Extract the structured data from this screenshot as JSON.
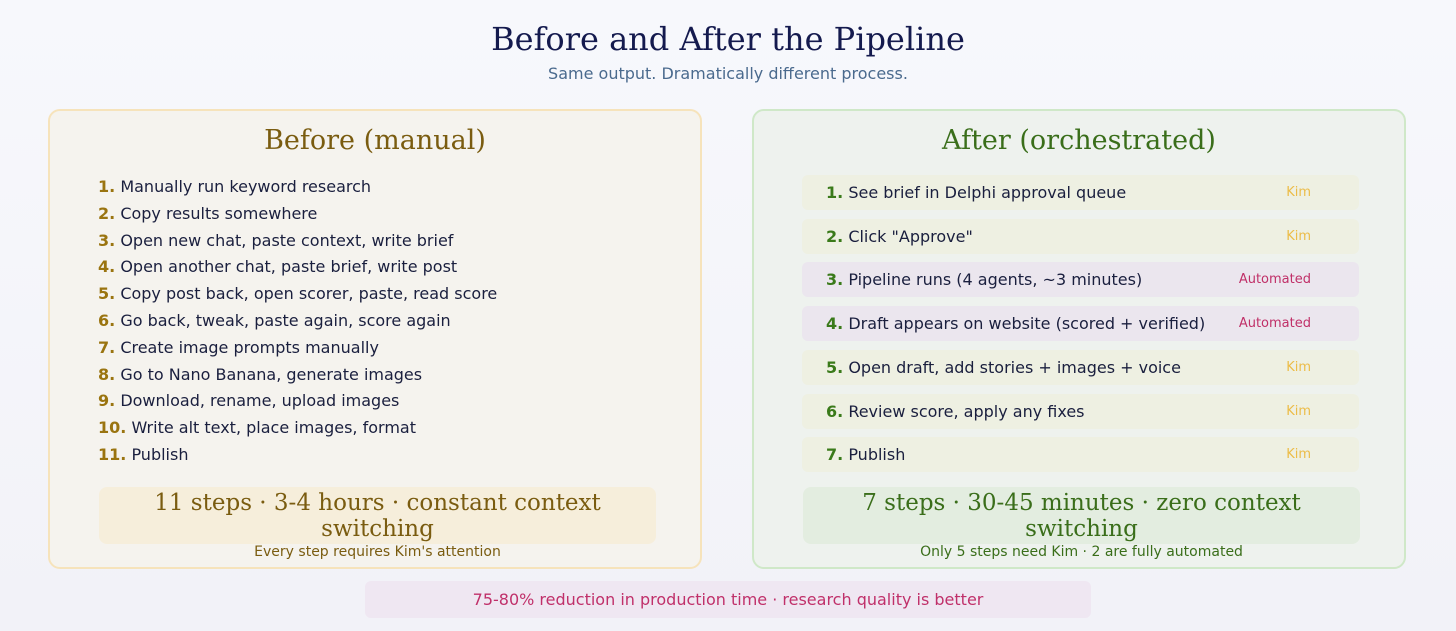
{
  "header": {
    "title": "Before and After the Pipeline",
    "subtitle": "Same output. Dramatically different process."
  },
  "before": {
    "title": "Before (manual)",
    "steps": [
      {
        "number": "1.",
        "text": "Manually run keyword research"
      },
      {
        "number": "2.",
        "text": "Copy results somewhere"
      },
      {
        "number": "3.",
        "text": "Open new chat, paste context, write brief"
      },
      {
        "number": "4.",
        "text": "Open another chat, paste brief, write post"
      },
      {
        "number": "5.",
        "text": "Copy post back, open scorer, paste, read score"
      },
      {
        "number": "6.",
        "text": "Go back, tweak, paste again, score again"
      },
      {
        "number": "7.",
        "text": "Create image prompts manually"
      },
      {
        "number": "8.",
        "text": "Go to Nano Banana, generate images"
      },
      {
        "number": "9.",
        "text": "Download, rename, upload images"
      },
      {
        "number": "10.",
        "text": "Write alt text, place images, format"
      },
      {
        "number": "11.",
        "text": "Publish"
      }
    ],
    "summary": {
      "title": "11 steps · 3-4 hours · constant context switching",
      "note": "Every step requires Kim's attention"
    }
  },
  "after": {
    "title": "After (orchestrated)",
    "steps": [
      {
        "number": "1.",
        "text": "See brief in Delphi approval queue",
        "owner": "Kim"
      },
      {
        "number": "2.",
        "text": "Click \"Approve\"",
        "owner": "Kim"
      },
      {
        "number": "3.",
        "text": "Pipeline runs (4 agents, ~3 minutes)",
        "owner": "Automated"
      },
      {
        "number": "4.",
        "text": "Draft appears on website (scored + verified)",
        "owner": "Automated"
      },
      {
        "number": "5.",
        "text": "Open draft, add stories + images + voice",
        "owner": "Kim"
      },
      {
        "number": "6.",
        "text": "Review score, apply any fixes",
        "owner": "Kim"
      },
      {
        "number": "7.",
        "text": "Publish",
        "owner": "Kim"
      }
    ],
    "summary": {
      "title": "7 steps · 30-45 minutes · zero context switching",
      "note": "Only 5 steps need Kim · 2 are fully automated"
    }
  },
  "footer": {
    "text": "75-80% reduction in production time · research quality is better"
  }
}
